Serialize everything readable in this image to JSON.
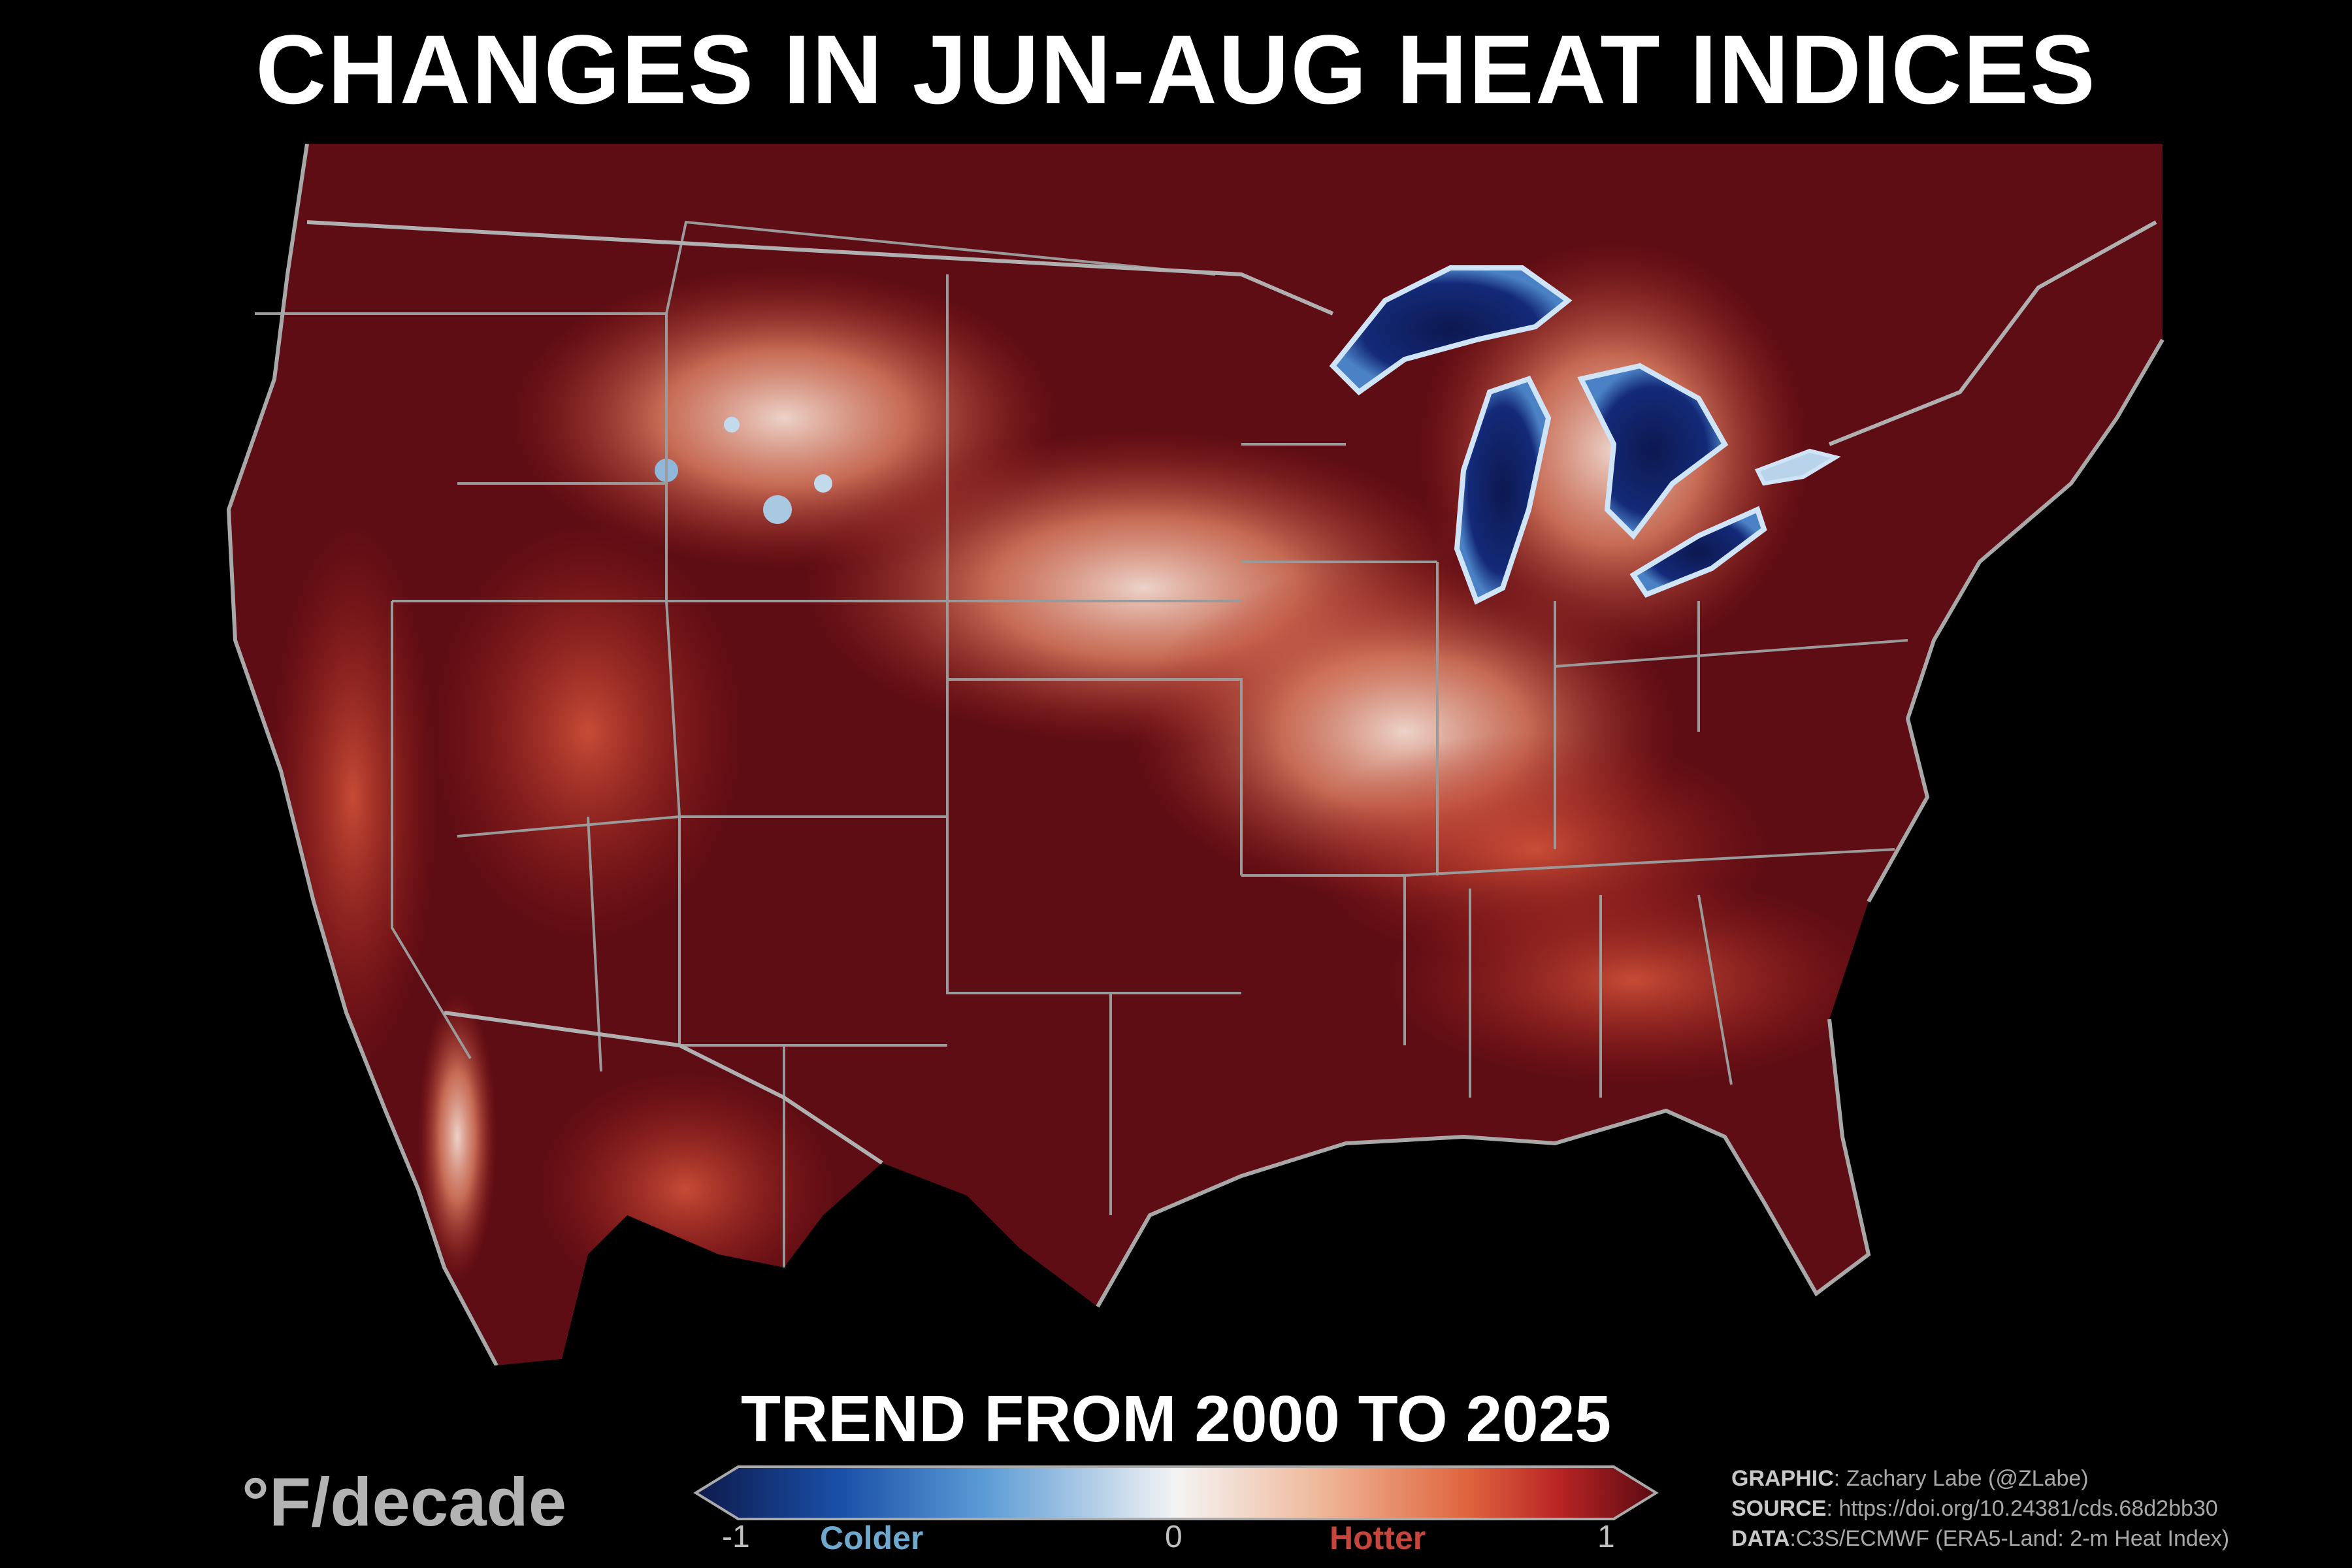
{
  "title": "CHANGES IN JUN-AUG HEAT INDICES",
  "legend": {
    "trend_title": "TREND FROM 2000 TO 2025",
    "unit": "°F/decade",
    "min_label": "-1",
    "zero_label": "0",
    "max_label": "1",
    "colder_label": "Colder",
    "hotter_label": "Hotter",
    "colors": [
      "#0d1a4a",
      "#1a4fa8",
      "#5b9bd5",
      "#f4f4f4",
      "#f0b89a",
      "#e0663f",
      "#b82424",
      "#5a0a12"
    ]
  },
  "credits": {
    "graphic_key": "GRAPHIC",
    "graphic_value": ": Zachary Labe (@ZLabe)",
    "source_key": "SOURCE",
    "source_value": ": https://doi.org/10.24381/cds.68d2bb30",
    "data_key": "DATA",
    "data_value": ":C3S/ECMWF (ERA5-Land: 2-m Heat Index)"
  },
  "map": {
    "region": "Contiguous United States",
    "background_color": "#000000",
    "dominant_color": "#5e0d14",
    "border_color": "#9a9a9a"
  }
}
